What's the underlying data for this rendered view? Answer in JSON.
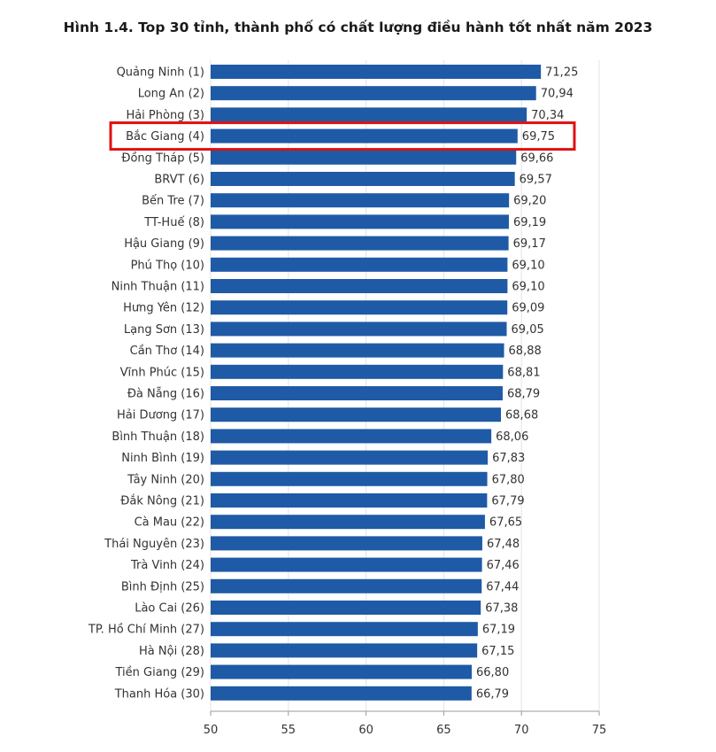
{
  "chart_data": {
    "type": "bar",
    "orientation": "horizontal",
    "title": "Hình 1.4. Top 30 tỉnh, thành phố có chất lượng điều hành tốt nhất năm 2023",
    "categories": [
      "Quảng Ninh (1)",
      "Long An (2)",
      "Hải Phòng (3)",
      "Bắc Giang (4)",
      "Đồng Tháp (5)",
      "BRVT (6)",
      "Bến Tre (7)",
      "TT-Huế (8)",
      "Hậu Giang (9)",
      "Phú Thọ (10)",
      "Ninh Thuận (11)",
      "Hưng Yên (12)",
      "Lạng Sơn (13)",
      "Cần Thơ (14)",
      "Vĩnh Phúc (15)",
      "Đà Nẵng (16)",
      "Hải Dương (17)",
      "Bình Thuận (18)",
      "Ninh Bình (19)",
      "Tây Ninh (20)",
      "Đắk Nông (21)",
      "Cà Mau (22)",
      "Thái Nguyên (23)",
      "Trà Vinh (24)",
      "Bình Định (25)",
      "Lào Cai (26)",
      "TP. Hồ Chí Minh (27)",
      "Hà Nội (28)",
      "Tiền Giang (29)",
      "Thanh Hóa (30)"
    ],
    "values": [
      71.25,
      70.94,
      70.34,
      69.75,
      69.66,
      69.57,
      69.2,
      69.19,
      69.17,
      69.1,
      69.1,
      69.09,
      69.05,
      68.88,
      68.81,
      68.79,
      68.68,
      68.06,
      67.83,
      67.8,
      67.79,
      67.65,
      67.48,
      67.46,
      67.44,
      67.38,
      67.19,
      67.15,
      66.8,
      66.79
    ],
    "value_labels": [
      "71,25",
      "70,94",
      "70,34",
      "69,75",
      "69,66",
      "69,57",
      "69,20",
      "69,19",
      "69,17",
      "69,10",
      "69,10",
      "69,09",
      "69,05",
      "68,88",
      "68,81",
      "68,79",
      "68,68",
      "68,06",
      "67,83",
      "67,80",
      "67,79",
      "67,65",
      "67,48",
      "67,46",
      "67,44",
      "67,38",
      "67,19",
      "67,15",
      "66,80",
      "66,79"
    ],
    "xlim": [
      50,
      75
    ],
    "xticks": [
      "50",
      "55",
      "60",
      "65",
      "70",
      "75"
    ],
    "grid": true,
    "bar_color": "#1f5aa6",
    "highlight_index": 3,
    "highlight_color": "#e01010"
  }
}
